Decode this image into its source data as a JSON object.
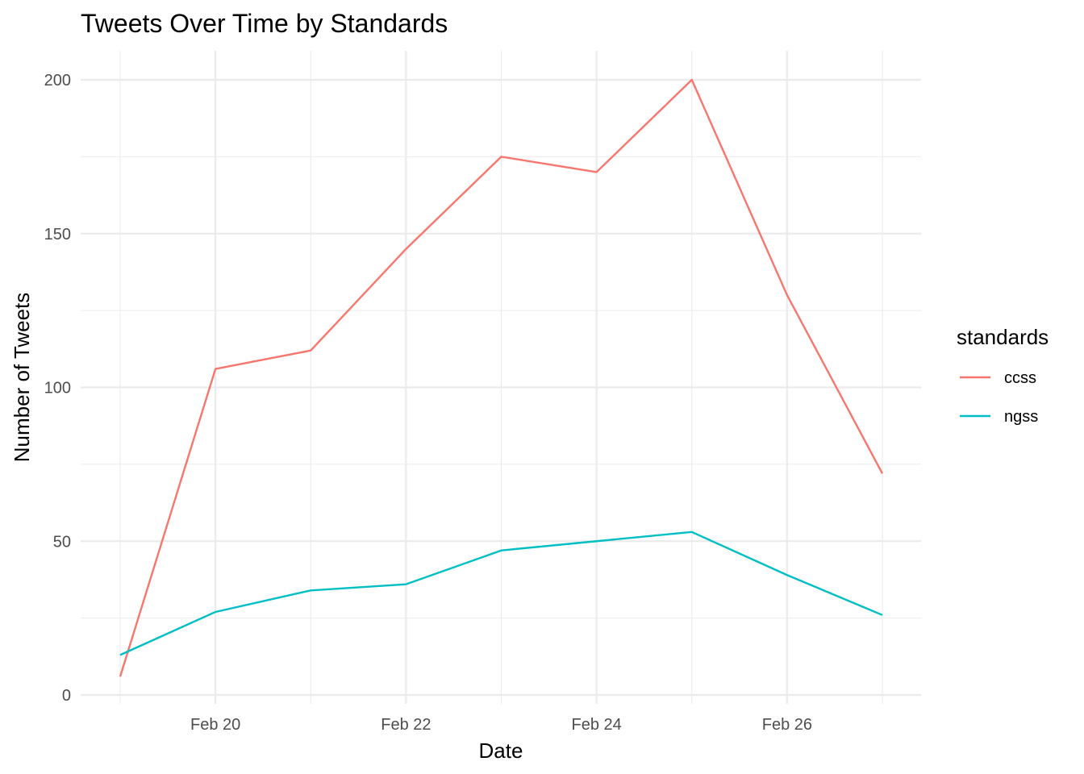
{
  "chart_data": {
    "type": "line",
    "title": "Tweets Over Time by Standards",
    "xlabel": "Date",
    "ylabel": "Number of Tweets",
    "x": [
      "2024-02-19",
      "2024-02-20",
      "2024-02-21",
      "2024-02-22",
      "2024-02-23",
      "2024-02-24",
      "2024-02-25",
      "2024-02-26",
      "2024-02-27"
    ],
    "x_range": [
      "2024-02-19",
      "2024-02-27"
    ],
    "x_ticks": [
      {
        "date": "2024-02-20",
        "label": "Feb 20"
      },
      {
        "date": "2024-02-22",
        "label": "Feb 22"
      },
      {
        "date": "2024-02-24",
        "label": "Feb 24"
      },
      {
        "date": "2024-02-26",
        "label": "Feb 26"
      }
    ],
    "ylim": [
      0,
      200
    ],
    "y_ticks": [
      0,
      50,
      100,
      150,
      200
    ],
    "grid": true,
    "legend": {
      "title": "standards",
      "placement": "right"
    },
    "series": [
      {
        "name": "ccss",
        "color": "#F8766D",
        "values": [
          6,
          106,
          112,
          145,
          175,
          170,
          200,
          130,
          72
        ]
      },
      {
        "name": "ngss",
        "color": "#00BFC4",
        "values": [
          13,
          27,
          34,
          36,
          47,
          50,
          53,
          39,
          26
        ]
      }
    ]
  }
}
